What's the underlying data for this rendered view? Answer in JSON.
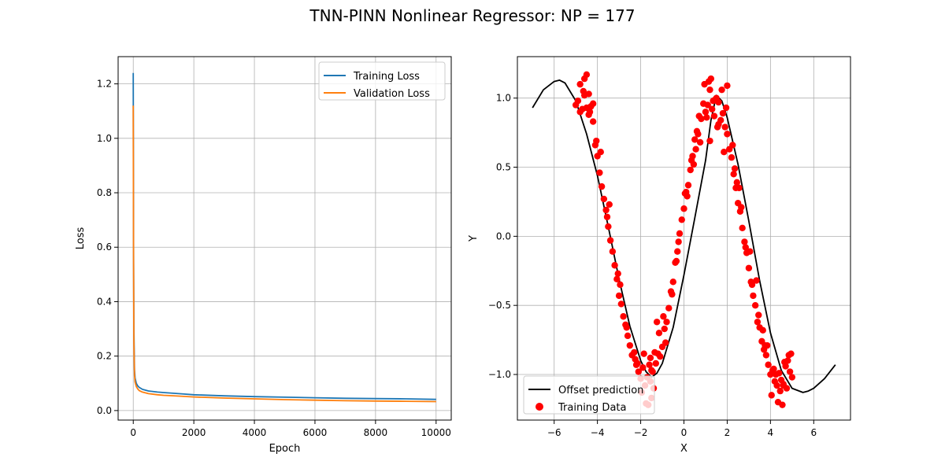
{
  "figure": {
    "suptitle": "TNN-PINN Nonlinear Regressor: NP = 177"
  },
  "chart_data": [
    {
      "type": "line",
      "title": "",
      "xlabel": "Epoch",
      "ylabel": "Loss",
      "xlim": [
        -500,
        10500
      ],
      "ylim": [
        -0.035,
        1.3
      ],
      "xticks": [
        0,
        2000,
        4000,
        6000,
        8000,
        10000
      ],
      "yticks": [
        0.0,
        0.2,
        0.4,
        0.6,
        0.8,
        1.0,
        1.2
      ],
      "grid": true,
      "legend_position": "top-right",
      "series": [
        {
          "name": "Training Loss",
          "color": "#1f77b4",
          "x": [
            0,
            10,
            20,
            40,
            60,
            100,
            150,
            200,
            300,
            500,
            800,
            1000,
            1500,
            2000,
            3000,
            4000,
            5000,
            6000,
            7000,
            8000,
            9000,
            10000
          ],
          "y": [
            1.24,
            0.62,
            0.3,
            0.15,
            0.12,
            0.1,
            0.09,
            0.085,
            0.078,
            0.072,
            0.068,
            0.066,
            0.062,
            0.058,
            0.054,
            0.051,
            0.049,
            0.047,
            0.045,
            0.044,
            0.043,
            0.041
          ]
        },
        {
          "name": "Validation Loss",
          "color": "#ff7f0e",
          "x": [
            0,
            10,
            20,
            40,
            60,
            100,
            150,
            200,
            300,
            500,
            800,
            1000,
            1500,
            2000,
            3000,
            4000,
            5000,
            6000,
            7000,
            8000,
            9000,
            10000
          ],
          "y": [
            1.12,
            0.55,
            0.26,
            0.13,
            0.105,
            0.088,
            0.079,
            0.073,
            0.068,
            0.062,
            0.058,
            0.056,
            0.053,
            0.05,
            0.046,
            0.043,
            0.04,
            0.038,
            0.036,
            0.035,
            0.034,
            0.033
          ]
        }
      ]
    },
    {
      "type": "scatter",
      "title": "",
      "xlabel": "X",
      "ylabel": "Y",
      "xlim": [
        -7.7,
        7.7
      ],
      "ylim": [
        -1.33,
        1.3
      ],
      "xticks": [
        -6,
        -4,
        -2,
        0,
        2,
        4,
        6
      ],
      "yticks": [
        -1.0,
        -0.5,
        0.0,
        0.5,
        1.0
      ],
      "grid": true,
      "legend_position": "lower-left",
      "series": [
        {
          "name": "Offset prediction",
          "type": "line",
          "color": "#000000",
          "x": [
            -7.0,
            -6.5,
            -6.0,
            -5.75,
            -5.5,
            -5.0,
            -4.5,
            -4.0,
            -3.5,
            -3.0,
            -2.5,
            -2.0,
            -1.75,
            -1.5,
            -1.25,
            -1.0,
            -0.5,
            0.0,
            0.5,
            1.0,
            1.25,
            1.5,
            1.75,
            2.0,
            2.5,
            3.0,
            3.5,
            4.0,
            4.5,
            5.0,
            5.5,
            5.75,
            6.0,
            6.5,
            7.0
          ],
          "y": [
            0.93,
            1.06,
            1.12,
            1.13,
            1.11,
            0.98,
            0.74,
            0.44,
            0.07,
            -0.31,
            -0.65,
            -0.9,
            -0.98,
            -1.02,
            -0.99,
            -0.92,
            -0.66,
            -0.28,
            0.13,
            0.55,
            0.84,
            1.02,
            0.98,
            0.86,
            0.52,
            0.11,
            -0.32,
            -0.7,
            -0.97,
            -1.1,
            -1.13,
            -1.12,
            -1.1,
            -1.03,
            -0.93
          ]
        },
        {
          "name": "Training Data",
          "type": "scatter",
          "color": "#ff0000",
          "x": [
            -5.0,
            -4.9,
            -4.8,
            -4.7,
            -4.6,
            -4.5,
            -4.4,
            -4.3,
            -4.2,
            -4.1,
            -4.0,
            -3.9,
            -3.8,
            -3.7,
            -3.6,
            -3.5,
            -3.4,
            -3.3,
            -3.2,
            -3.1,
            -3.0,
            -2.9,
            -2.8,
            -2.7,
            -2.6,
            -2.5,
            -2.4,
            -2.3,
            -2.2,
            -2.1,
            -2.0,
            -1.9,
            -1.8,
            -1.7,
            -1.6,
            -1.5,
            -1.4,
            -1.3,
            -1.2,
            -1.1,
            -1.0,
            -0.9,
            -0.8,
            -0.7,
            -0.6,
            -0.5,
            -0.4,
            -0.3,
            -0.2,
            -0.1,
            0.0,
            0.1,
            0.2,
            0.3,
            0.4,
            0.5,
            0.6,
            0.7,
            0.8,
            0.9,
            1.0,
            1.1,
            1.2,
            1.3,
            1.4,
            1.5,
            1.6,
            1.7,
            1.8,
            1.9,
            2.0,
            2.1,
            2.2,
            2.3,
            2.4,
            2.5,
            2.6,
            2.7,
            2.8,
            2.9,
            3.0,
            3.1,
            3.2,
            3.3,
            3.4,
            3.5,
            3.6,
            3.7,
            3.8,
            3.9,
            4.0,
            4.1,
            4.2,
            4.3,
            4.4,
            4.5,
            4.6,
            4.7,
            4.8,
            4.9,
            5.0,
            -4.8,
            -4.6,
            -4.4,
            -4.2,
            -3.85,
            -3.45,
            -3.05,
            -2.65,
            -2.25,
            -1.95,
            -1.75,
            -1.55,
            -1.35,
            -1.15,
            -0.85,
            -0.55,
            -0.25,
            0.05,
            0.35,
            0.65,
            0.95,
            1.15,
            1.35,
            1.55,
            1.75,
            1.95,
            2.25,
            2.55,
            2.85,
            3.15,
            3.45,
            3.75,
            4.05,
            4.25,
            4.45,
            4.65,
            4.85,
            -1.85,
            -1.45,
            -1.65,
            -1.5,
            1.2,
            1.6,
            2.0,
            4.35,
            4.55,
            4.75,
            -4.5,
            -4.35,
            -3.55,
            -2.95,
            0.15,
            0.75,
            1.45,
            2.65,
            3.35,
            4.15,
            -1.55,
            -1.25,
            -0.95,
            0.45,
            1.05,
            1.85,
            2.35,
            3.05,
            3.65,
            4.95,
            -4.65,
            -4.05,
            -2.15,
            -0.35,
            0.55,
            1.25,
            2.45,
            3.85,
            4.6
          ],
          "y": [
            0.95,
            0.98,
            0.9,
            0.92,
            1.02,
            0.93,
            0.88,
            0.94,
            0.83,
            0.66,
            0.58,
            0.46,
            0.36,
            0.27,
            0.19,
            0.07,
            -0.03,
            -0.11,
            -0.21,
            -0.31,
            -0.43,
            -0.49,
            -0.58,
            -0.64,
            -0.72,
            -0.79,
            -0.86,
            -0.84,
            -0.93,
            -0.98,
            -1.03,
            -0.95,
            -1.08,
            -1.02,
            -0.93,
            -0.97,
            -1.1,
            -0.92,
            -0.85,
            -0.87,
            -0.8,
            -0.67,
            -0.62,
            -0.52,
            -0.4,
            -0.33,
            -0.19,
            -0.11,
            0.02,
            0.12,
            0.2,
            0.32,
            0.37,
            0.48,
            0.58,
            0.7,
            0.76,
            0.87,
            0.85,
            0.96,
            0.9,
            0.95,
            1.06,
            0.92,
            0.87,
            1.0,
            0.97,
            0.84,
            0.89,
            0.79,
            0.74,
            0.63,
            0.57,
            0.45,
            0.35,
            0.24,
            0.18,
            0.06,
            -0.04,
            -0.12,
            -0.23,
            -0.33,
            -0.43,
            -0.5,
            -0.62,
            -0.66,
            -0.76,
            -0.82,
            -0.86,
            -0.93,
            -1.0,
            -0.97,
            -1.05,
            -1.08,
            -0.99,
            -1.04,
            -1.07,
            -0.94,
            -0.9,
            -0.98,
            -1.02,
            1.1,
            1.14,
            1.03,
            0.96,
            0.61,
            0.23,
            -0.27,
            -0.66,
            -0.89,
            -1.13,
            -1.21,
            -1.05,
            -0.84,
            -0.7,
            -0.77,
            -0.42,
            -0.04,
            0.31,
            0.55,
            0.74,
            1.1,
            1.12,
            0.98,
            0.79,
            1.06,
            0.93,
            0.66,
            0.35,
            -0.08,
            -0.35,
            -0.57,
            -0.79,
            -1.15,
            -1.0,
            -1.12,
            -0.91,
            -0.86,
            -0.85,
            -0.98,
            -1.22,
            -1.17,
            0.69,
            0.81,
            1.09,
            -1.2,
            -1.22,
            -1.1,
            1.17,
            0.9,
            0.14,
            -0.35,
            0.29,
            0.68,
            0.99,
            0.21,
            -0.32,
            -0.96,
            -0.88,
            -0.62,
            -0.58,
            0.52,
            0.86,
            0.61,
            0.49,
            -0.11,
            -0.68,
            -0.85,
            1.05,
            0.69,
            -0.92,
            -0.18,
            0.63,
            1.14,
            0.39,
            -0.79,
            -1.08
          ]
        }
      ]
    }
  ]
}
